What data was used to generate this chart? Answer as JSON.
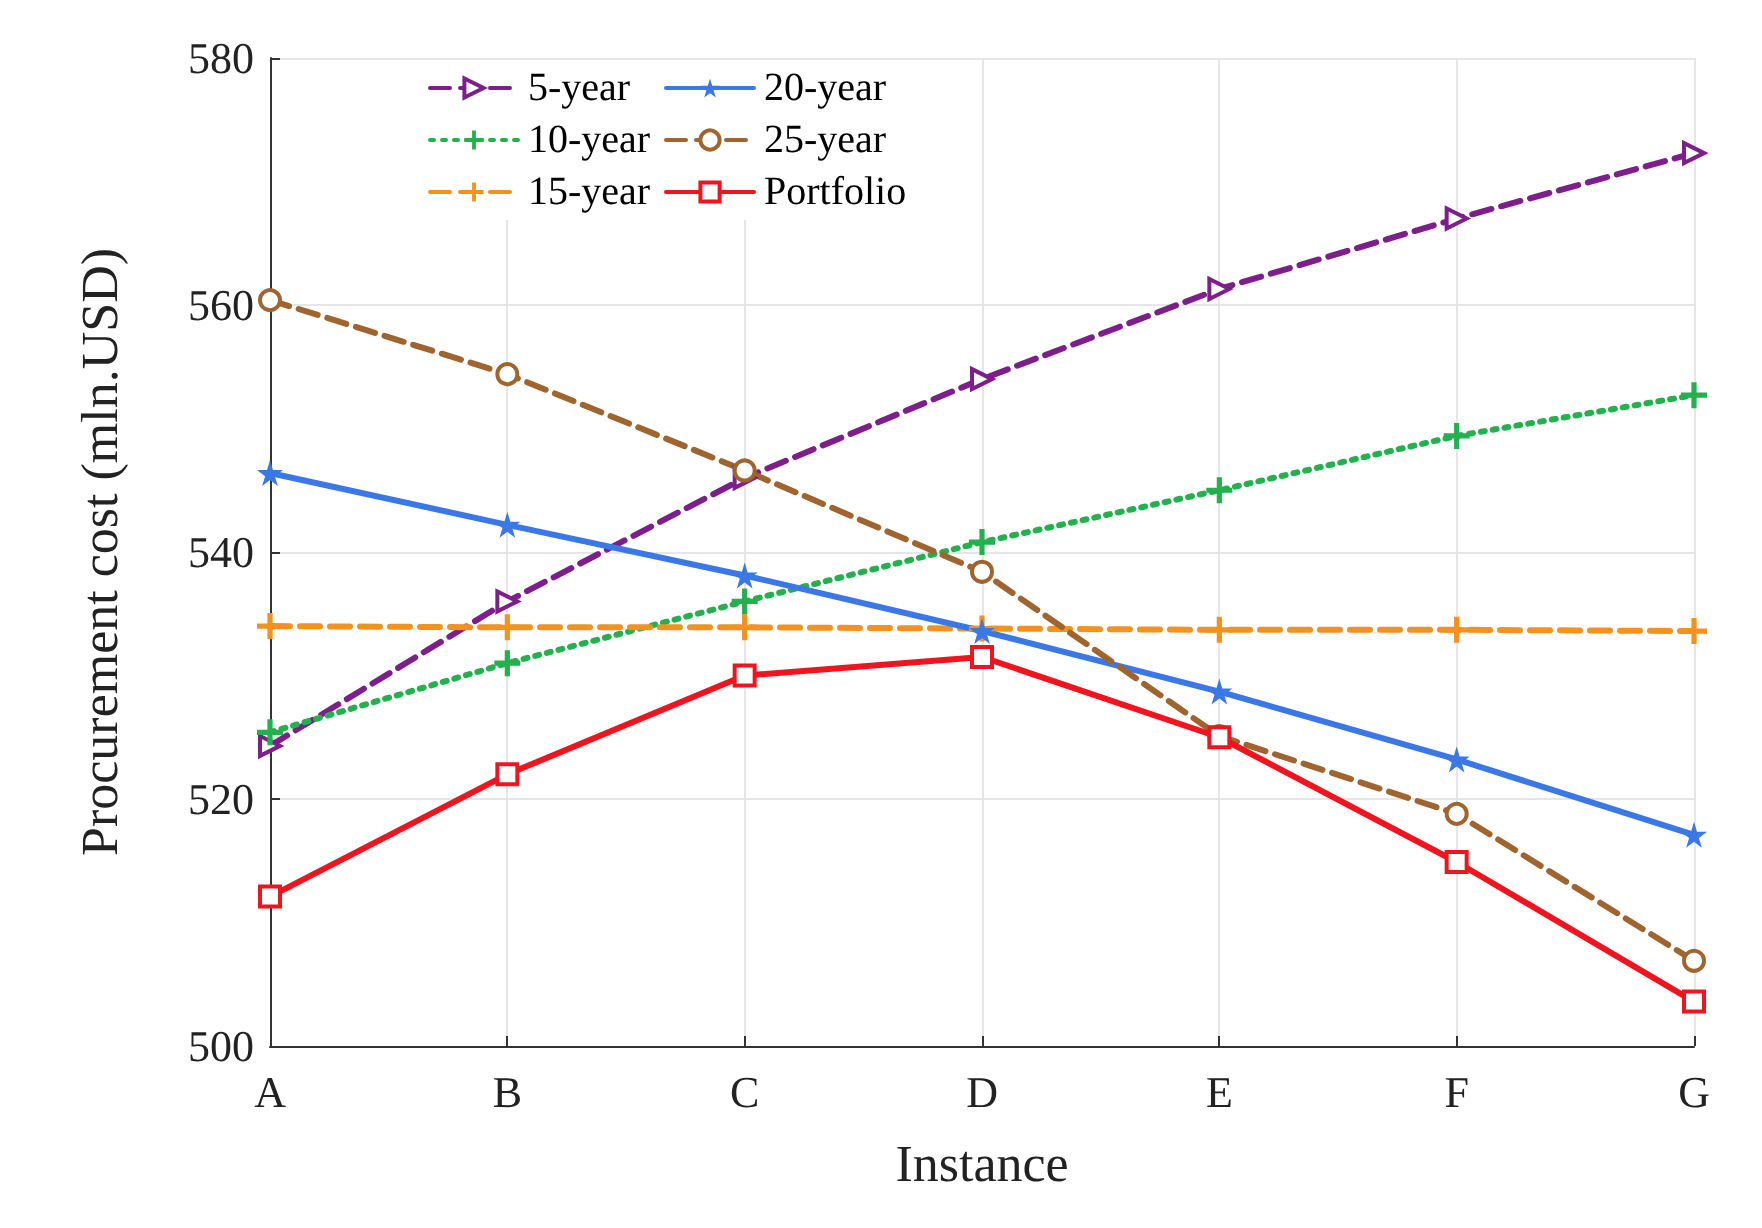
{
  "chart_data": {
    "type": "line",
    "xlabel": "Instance",
    "ylabel": "Procurement cost (mln.USD)",
    "categories": [
      "A",
      "B",
      "C",
      "D",
      "E",
      "F",
      "G"
    ],
    "ylim": [
      500,
      580
    ],
    "yticks": [
      500,
      520,
      540,
      560,
      580
    ],
    "grid": true,
    "legend": "top left",
    "series": [
      {
        "name": "5-year",
        "color": "#7e1e8c",
        "marker": "triangle",
        "line_style": "dashed",
        "values": [
          524.3,
          536,
          546,
          554,
          561.3,
          567,
          572.3
        ]
      },
      {
        "name": "10-year",
        "color": "#22b14c",
        "marker": "cross",
        "line_style": "dotted",
        "values": [
          525.4,
          531,
          536,
          540.8,
          545,
          549.4,
          552.7
        ]
      },
      {
        "name": "15-year",
        "color": "#f5921e",
        "marker": "cross",
        "line_style": "dashed",
        "values": [
          534,
          533.9,
          533.9,
          533.8,
          533.7,
          533.7,
          533.6
        ]
      },
      {
        "name": "20-year",
        "color": "#3b78e7",
        "marker": "star",
        "line_style": "solid",
        "values": [
          546.4,
          542.2,
          538.1,
          533.6,
          528.7,
          523.2,
          517.1
        ]
      },
      {
        "name": "25-year",
        "color": "#a0642e",
        "marker": "circle",
        "line_style": "dashed",
        "values": [
          560.4,
          554.4,
          546.6,
          538.4,
          525.1,
          518.8,
          506.9
        ]
      },
      {
        "name": "Portfolio",
        "color": "#f0141e",
        "marker": "square",
        "line_style": "solid",
        "values": [
          512.1,
          522,
          530,
          531.5,
          525,
          514.9,
          503.6
        ]
      }
    ]
  }
}
